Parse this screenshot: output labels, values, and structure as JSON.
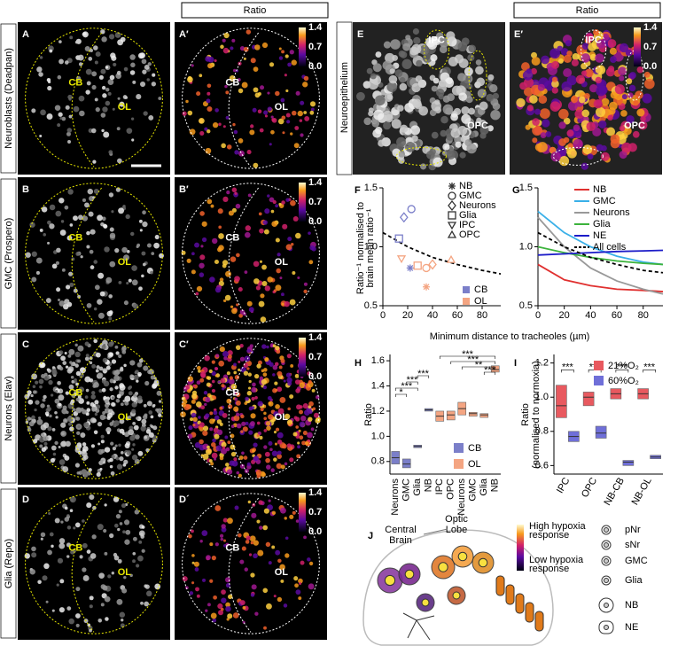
{
  "header": "Ratio",
  "row_labels": [
    "Neuroblasts (Deadpan)",
    "GMC (Prospero)",
    "Neurons (Elav)",
    "Glia (Repo)"
  ],
  "side_label": "Neuroepithelium",
  "colorbar_ticks": [
    {
      "value": 1.4,
      "label": "1.4"
    },
    {
      "value": 0.7,
      "label": "0.7"
    },
    {
      "value": 0,
      "label": "0.0"
    }
  ],
  "panels": [
    {
      "letter": "A",
      "labels": [
        "CB",
        "OL"
      ]
    },
    {
      "letter": "A′",
      "labels": [
        "CB",
        "OL"
      ]
    },
    {
      "letter": "B",
      "labels": [
        "CB",
        "OL"
      ]
    },
    {
      "letter": "B′",
      "labels": [
        "CB",
        "OL"
      ]
    },
    {
      "letter": "C",
      "labels": [
        "CB",
        "OL"
      ]
    },
    {
      "letter": "C′",
      "labels": [
        "CB",
        "OL"
      ]
    },
    {
      "letter": "D",
      "labels": [
        "CB",
        "OL"
      ]
    },
    {
      "letter": "D´",
      "labels": [
        "CB",
        "OL"
      ]
    },
    {
      "letter": "E",
      "labels": [
        "IPC",
        "OPC"
      ]
    },
    {
      "letter": "E′",
      "labels": [
        "IPC",
        "OPC"
      ]
    }
  ],
  "x_label": "Minimum distance to tracheoles (µm)",
  "chart_data": [
    {
      "type": "scatter",
      "letter": "F",
      "ylabel": [
        "Ratio⁻¹ normalised to",
        "brain mean ratio⁻¹"
      ],
      "xlim": [
        0,
        95
      ],
      "ylim": [
        0.5,
        1.5
      ],
      "xticks": [
        0,
        20,
        40,
        60,
        80
      ],
      "yticks": [
        0.5,
        {
          "value": 1.0,
          "label": "1.0"
        },
        1.5
      ],
      "marker_legend": [
        "NB",
        "GMC",
        "Neurons",
        "Glia",
        "IPC",
        "OPC"
      ],
      "series": [
        {
          "name": "CB",
          "color": "#7b7fc9",
          "points": [
            {
              "cell": 0,
              "x": 22,
              "y": 0.82
            },
            {
              "cell": 1,
              "x": 23,
              "y": 1.32
            },
            {
              "cell": 2,
              "x": 17,
              "y": 1.25
            },
            {
              "cell": 3,
              "x": 13,
              "y": 1.07
            }
          ]
        },
        {
          "name": "OL",
          "color": "#f4a582",
          "points": [
            {
              "cell": 0,
              "x": 35,
              "y": 0.66
            },
            {
              "cell": 1,
              "x": 35,
              "y": 0.82
            },
            {
              "cell": 2,
              "x": 40,
              "y": 0.85
            },
            {
              "cell": 3,
              "x": 28,
              "y": 0.84
            },
            {
              "cell": 4,
              "x": 15,
              "y": 0.9
            },
            {
              "cell": 5,
              "x": 55,
              "y": 0.89
            }
          ]
        }
      ],
      "fit": {
        "x": [
          0,
          20,
          40,
          60,
          80,
          95
        ],
        "y": [
          1.12,
          1.0,
          0.91,
          0.85,
          0.8,
          0.77
        ]
      }
    },
    {
      "type": "line",
      "letter": "G",
      "xlim": [
        0,
        95
      ],
      "ylim": [
        0.5,
        1.5
      ],
      "xticks": [
        0,
        20,
        40,
        60,
        80
      ],
      "yticks": [
        0.5,
        {
          "value": 1.0,
          "label": "1.0"
        },
        1.5
      ],
      "x": [
        0,
        20,
        40,
        60,
        80,
        95
      ],
      "series": [
        {
          "name": "NB",
          "color": "#e0302f",
          "values": [
            0.85,
            0.72,
            0.67,
            0.64,
            0.63,
            0.62
          ]
        },
        {
          "name": "GMC",
          "color": "#3ab0e8",
          "values": [
            1.3,
            1.12,
            1.0,
            0.92,
            0.87,
            0.85
          ]
        },
        {
          "name": "Neurons",
          "color": "#999999",
          "values": [
            1.25,
            1.0,
            0.82,
            0.71,
            0.64,
            0.6
          ]
        },
        {
          "name": "Glia",
          "color": "#3cb33c",
          "values": [
            1.0,
            0.95,
            0.91,
            0.88,
            0.86,
            0.85
          ]
        },
        {
          "name": "NE",
          "color": "#1c1cc8",
          "values": [
            0.93,
            0.94,
            0.95,
            0.96,
            0.965,
            0.97
          ]
        },
        {
          "name": "All cells",
          "color": "#000000",
          "dashed": true,
          "values": [
            1.12,
            1.0,
            0.91,
            0.85,
            0.8,
            0.78
          ]
        }
      ]
    },
    {
      "type": "box",
      "letter": "H",
      "ylabel": "Ratio",
      "ylim": [
        0.7,
        1.65
      ],
      "yticks": [
        0.8,
        {
          "value": 1.0,
          "label": "1.0"
        },
        1.2,
        1.4,
        1.6
      ],
      "significance": [
        "*",
        "***",
        "***",
        "***",
        "***",
        "***",
        "**",
        "***"
      ],
      "series": [
        {
          "name": "CB",
          "color": "#7b7fc9",
          "categories": [
            "Neurons",
            "GMC",
            "Glia",
            "NB"
          ],
          "q1": [
            0.78,
            0.75,
            0.91,
            1.2
          ],
          "median": [
            0.83,
            0.78,
            0.92,
            1.21
          ],
          "q3": [
            0.88,
            0.82,
            0.93,
            1.22
          ]
        },
        {
          "name": "OL",
          "color": "#f4a582",
          "categories": [
            "IPC",
            "OPC",
            "Neurons",
            "GMC",
            "Glia",
            "NB"
          ],
          "q1": [
            1.12,
            1.13,
            1.17,
            1.16,
            1.15,
            1.51
          ],
          "median": [
            1.16,
            1.17,
            1.22,
            1.18,
            1.17,
            1.53
          ],
          "q3": [
            1.2,
            1.2,
            1.27,
            1.19,
            1.18,
            1.56
          ]
        }
      ]
    },
    {
      "type": "box",
      "letter": "I",
      "ylabel": [
        "Ratio",
        "(normalised to normoxia)"
      ],
      "ylim": [
        0.55,
        1.25
      ],
      "yticks": [
        0.6,
        0.8,
        {
          "value": 1.0,
          "label": "1.0"
        },
        1.2
      ],
      "categories": [
        "IPC",
        "OPC",
        "NB-CB",
        "NB-OL"
      ],
      "significance": [
        "***",
        "***",
        "***",
        "***"
      ],
      "series": [
        {
          "name": "21%O₂",
          "color": "#e8595f",
          "q1": [
            0.88,
            0.95,
            0.99,
            0.99
          ],
          "median": [
            0.95,
            1.0,
            1.02,
            1.02
          ],
          "q3": [
            1.07,
            1.03,
            1.05,
            1.05
          ]
        },
        {
          "name": "60%O₂",
          "color": "#6f6fd8",
          "q1": [
            0.74,
            0.76,
            0.6,
            0.64
          ],
          "median": [
            0.77,
            0.79,
            0.62,
            0.65
          ],
          "q3": [
            0.8,
            0.83,
            0.63,
            0.66
          ]
        }
      ]
    }
  ],
  "diagram": {
    "letter": "J",
    "central_brain": [
      "Central",
      "Brain"
    ],
    "optic_lobe": [
      "Optic",
      "Lobe"
    ],
    "high": [
      "High hypoxia",
      "response"
    ],
    "low": [
      "Low hypoxia",
      "response"
    ],
    "cell_types": [
      "pNr",
      "sNr",
      "GMC",
      "Glia",
      "NB",
      "NE"
    ]
  }
}
